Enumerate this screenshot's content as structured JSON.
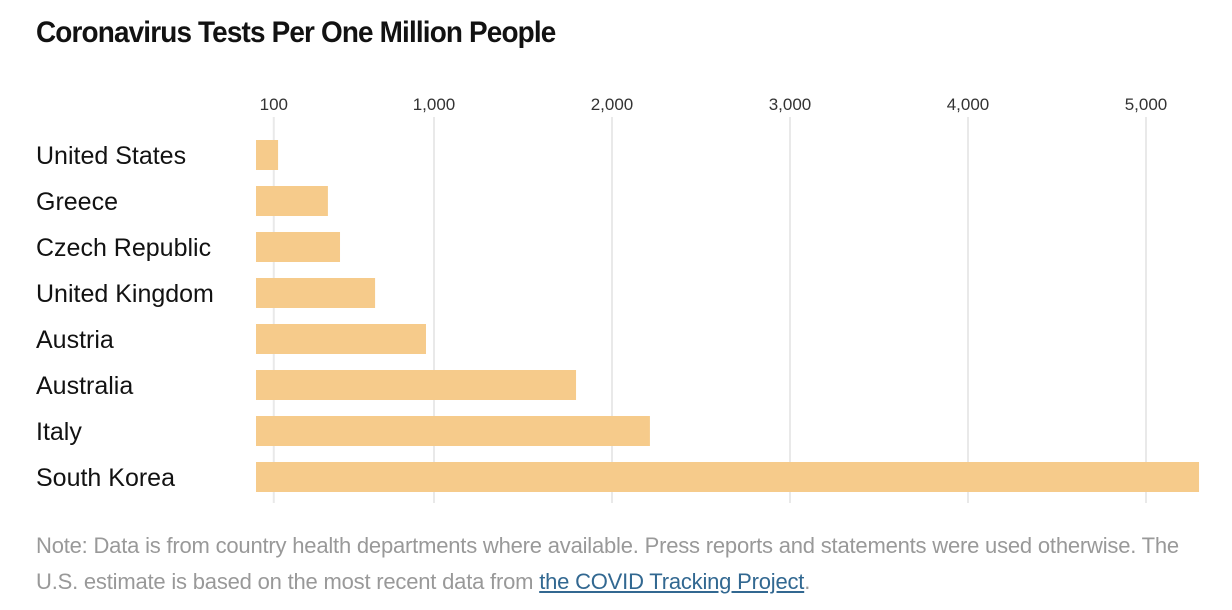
{
  "chart_data": {
    "type": "bar",
    "orientation": "horizontal",
    "title": "Coronavirus Tests Per One Million People",
    "xlabel": "",
    "ylabel": "",
    "categories": [
      "United States",
      "Greece",
      "Czech Republic",
      "United Kingdom",
      "Austria",
      "Australia",
      "Italy",
      "South Korea"
    ],
    "values": [
      124,
      404,
      472,
      669,
      955,
      1798,
      2213,
      5298
    ],
    "xlim": [
      0,
      5300
    ],
    "x_ticks": [
      100,
      1000,
      2000,
      3000,
      4000,
      5000
    ],
    "x_tick_labels": [
      "100",
      "1,000",
      "2,000",
      "3,000",
      "4,000",
      "5,000"
    ],
    "grid": true,
    "tick_position": "top",
    "bar_color": "#F6CB8B",
    "gridline_color": "#E9E9E9"
  },
  "note": {
    "text_before": "Note: Data is from country health departments where available. Press reports and statements were used otherwise. The U.S. estimate is based on the most recent data from ",
    "link_text": "the COVID Tracking Project",
    "text_after": "."
  },
  "colors": {
    "link": "#326891",
    "note_text": "#999999",
    "title_text": "#121212"
  }
}
